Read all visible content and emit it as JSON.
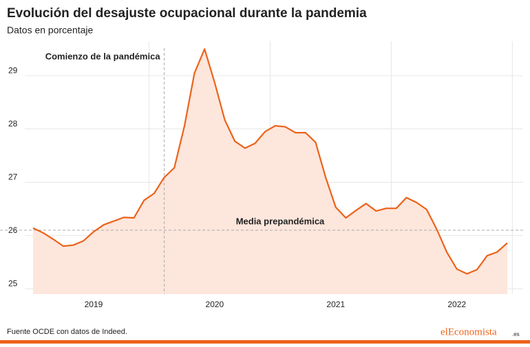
{
  "chart_data": {
    "type": "area",
    "title": "Evolución del desajuste ocupacional durante la pandemia",
    "subtitle": "Datos en porcentaje",
    "categories": [
      null,
      null,
      null,
      null,
      null,
      null,
      "2019",
      null,
      null,
      null,
      null,
      null,
      null,
      null,
      null,
      null,
      null,
      null,
      "2020",
      null,
      null,
      null,
      null,
      null,
      null,
      null,
      null,
      null,
      null,
      null,
      "2021",
      null,
      null,
      null,
      null,
      null,
      null,
      null,
      null,
      null,
      null,
      null,
      "2022",
      null,
      null,
      null,
      null,
      null
    ],
    "values": [
      26.14,
      26.05,
      25.93,
      25.8,
      25.82,
      25.9,
      26.07,
      26.2,
      26.27,
      26.34,
      26.33,
      26.66,
      26.79,
      27.09,
      27.27,
      28.05,
      29.05,
      29.5,
      28.87,
      28.17,
      27.77,
      27.64,
      27.73,
      27.95,
      28.06,
      28.04,
      27.93,
      27.93,
      27.75,
      27.09,
      26.53,
      26.33,
      26.47,
      26.6,
      26.46,
      26.51,
      26.51,
      26.71,
      26.62,
      26.49,
      26.12,
      25.69,
      25.37,
      25.28,
      25.36,
      25.62,
      25.69,
      25.86
    ],
    "color": "#ec6219",
    "fill_color": "#fde6dc",
    "ylim": [
      24.9,
      29.75
    ],
    "yticks": [
      25,
      26,
      27,
      28,
      29
    ],
    "grid": true,
    "hline": {
      "label": "Media prepandémica",
      "value": 26.1
    },
    "vline": {
      "label": "Comienzo de la pandémica",
      "category_index": 13
    }
  },
  "footer": {
    "source": "Fuente OCDE con datos de Indeed.",
    "brand": "elEconomista",
    "brand_suffix": ".es"
  }
}
